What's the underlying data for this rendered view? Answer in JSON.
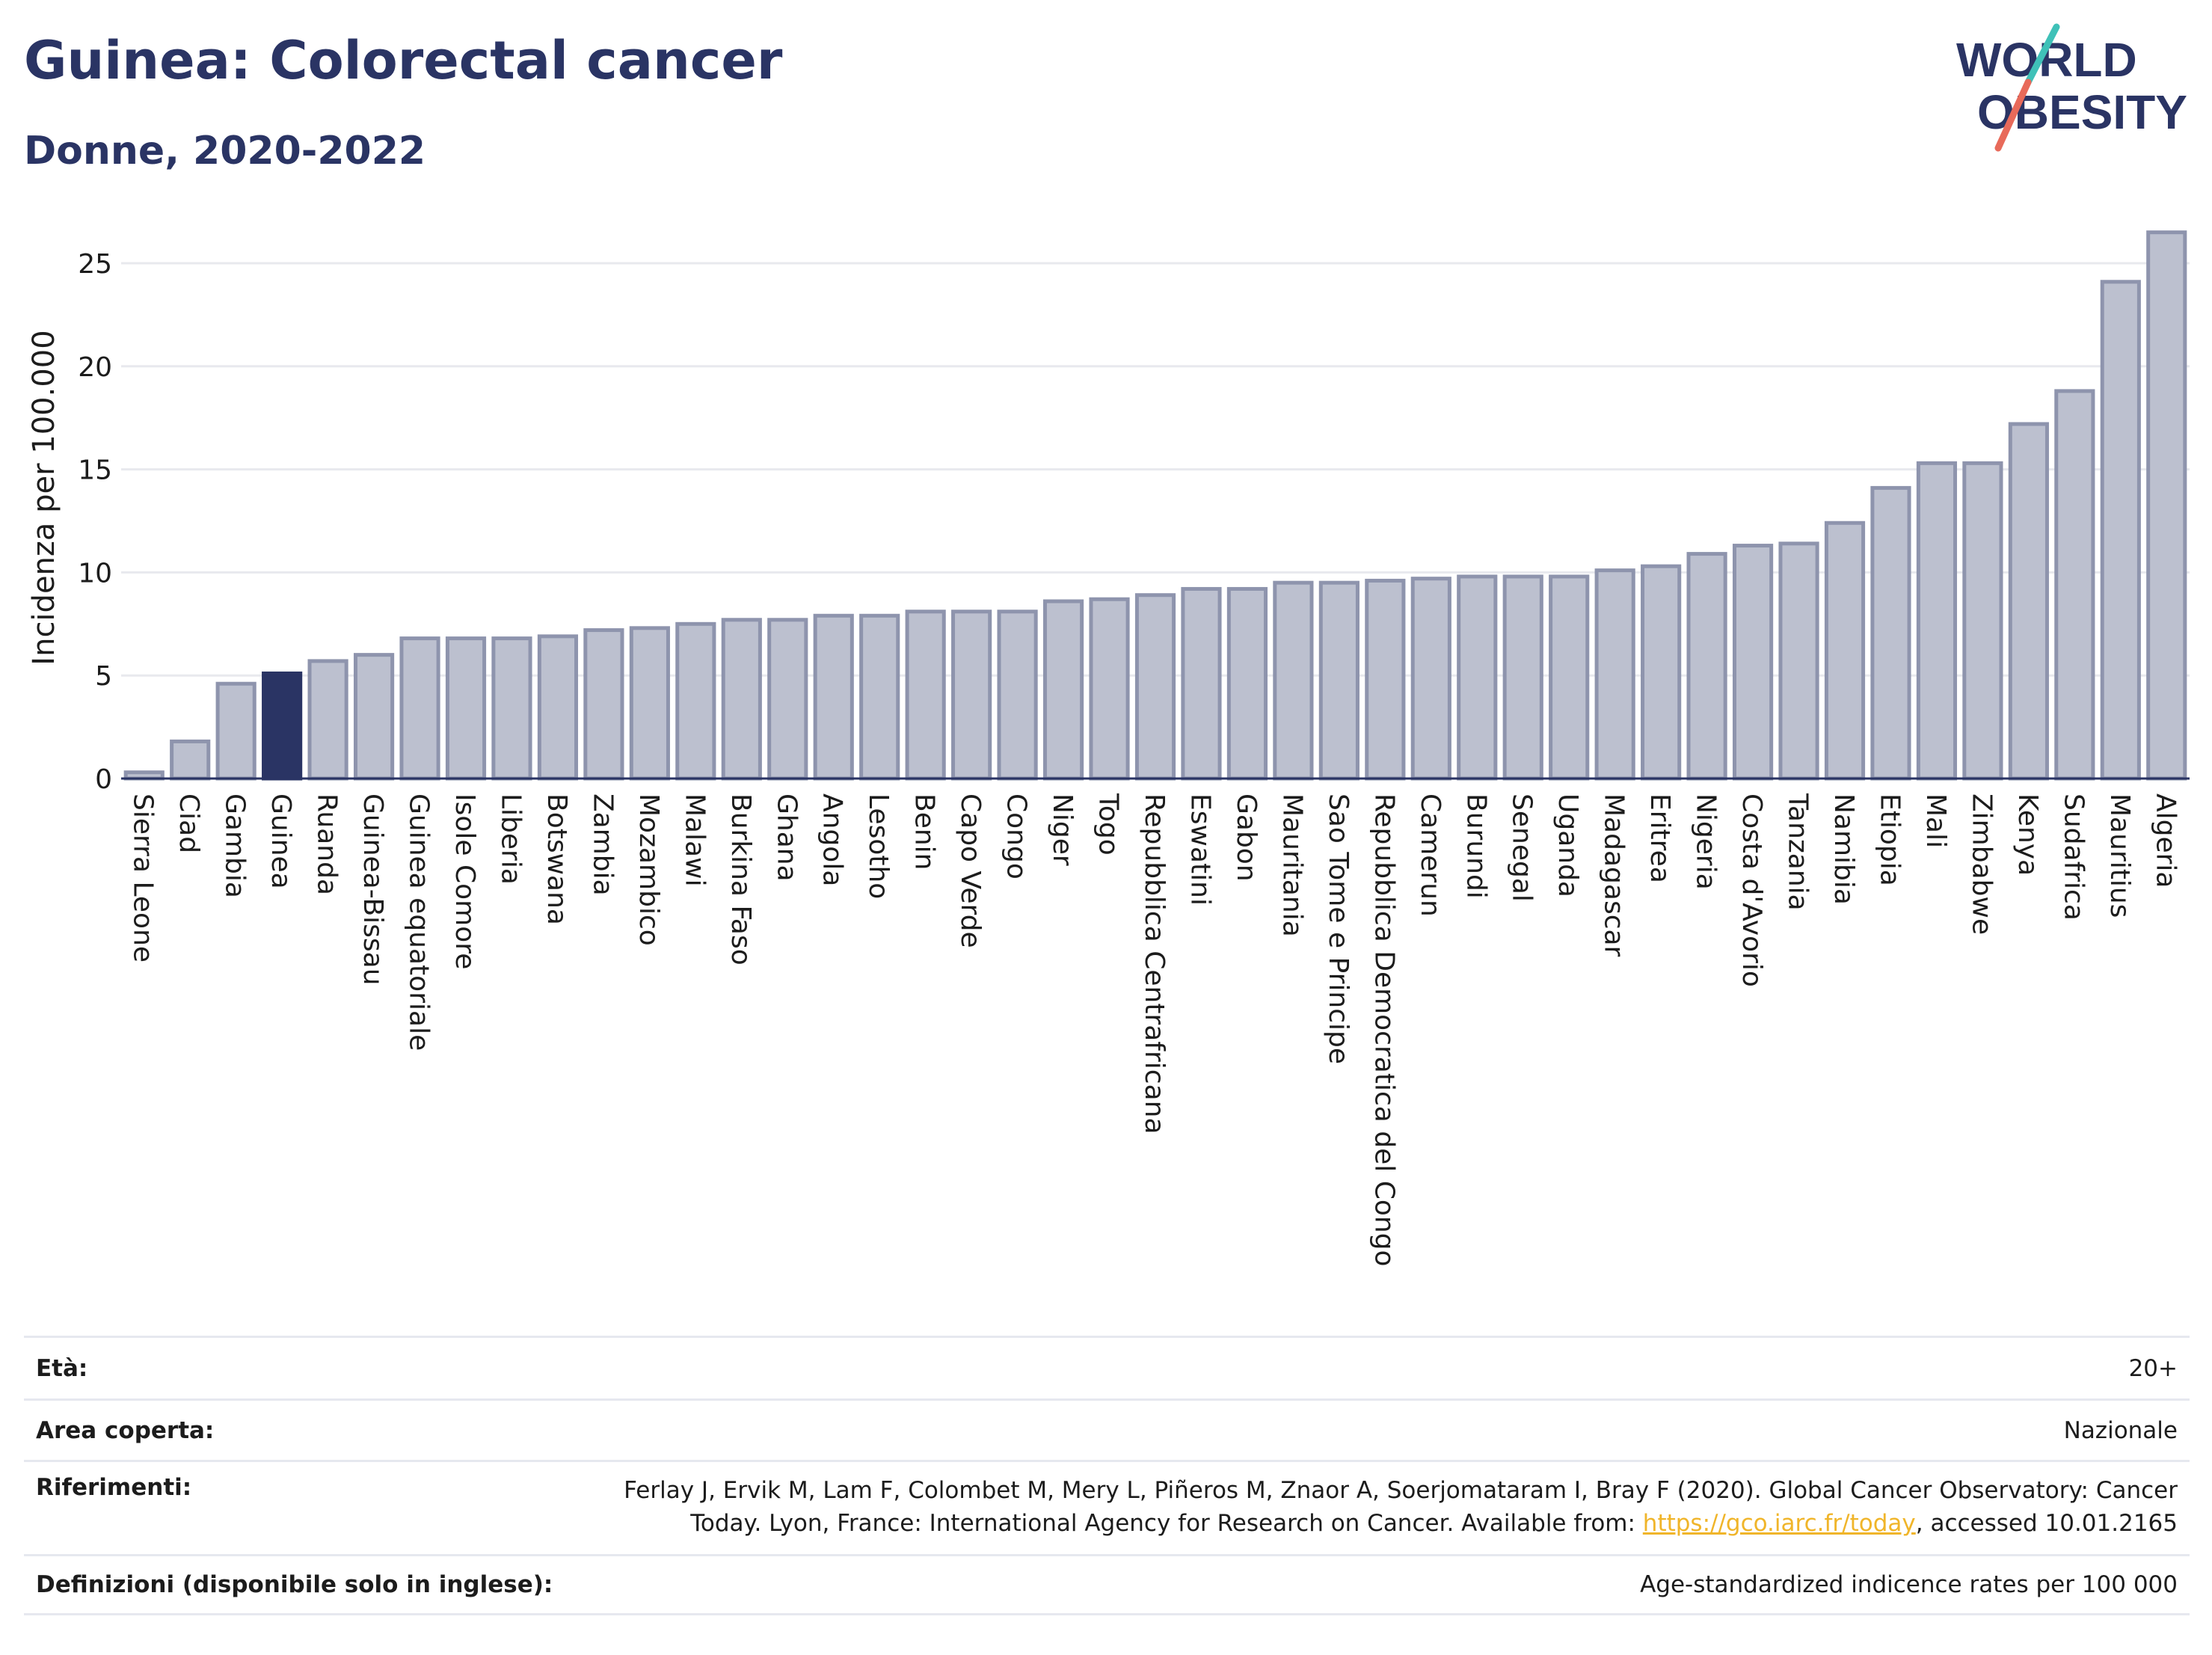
{
  "header": {
    "title": "Guinea: Colorectal cancer",
    "subtitle": "Donne, 2020-2022"
  },
  "logo": {
    "line1": "WORLD",
    "line2": "OBESITY"
  },
  "colors": {
    "bar": "#bcc0cf",
    "bar_border": "#8e94ad",
    "highlight": "#2a3464",
    "grid": "#e8e9ee",
    "text": "#2a3464",
    "link": "#f0b52a",
    "logo_slash_top": "#3fc1b8",
    "logo_slash_bottom": "#e86a5a"
  },
  "chart_data": {
    "type": "bar",
    "ylabel": "Incidenza per 100.000",
    "xlabel": "",
    "ylim": [
      0,
      27
    ],
    "yticks": [
      0,
      5,
      10,
      15,
      20,
      25
    ],
    "grid": true,
    "highlight": "Guinea",
    "categories": [
      "Sierra Leone",
      "Ciad",
      "Gambia",
      "Guinea",
      "Ruanda",
      "Guinea-Bissau",
      "Guinea equatoriale",
      "Isole Comore",
      "Liberia",
      "Botswana",
      "Zambia",
      "Mozambico",
      "Malawi",
      "Burkina Faso",
      "Ghana",
      "Angola",
      "Lesotho",
      "Benin",
      "Capo Verde",
      "Congo",
      "Niger",
      "Togo",
      "Repubblica Centrafricana",
      "Eswatini",
      "Gabon",
      "Mauritania",
      "Sao Tome e Principe",
      "Repubblica Democratica del Congo",
      "Camerun",
      "Burundi",
      "Senegal",
      "Uganda",
      "Madagascar",
      "Eritrea",
      "Nigeria",
      "Costa d'Avorio",
      "Tanzania",
      "Namibia",
      "Etiopia",
      "Mali",
      "Zimbabwe",
      "Kenya",
      "Sudafrica",
      "Mauritius",
      "Algeria"
    ],
    "values": [
      0.3,
      1.8,
      4.6,
      5.1,
      5.7,
      6.0,
      6.8,
      6.8,
      6.8,
      6.9,
      7.2,
      7.3,
      7.5,
      7.7,
      7.7,
      7.9,
      7.9,
      8.1,
      8.1,
      8.1,
      8.6,
      8.7,
      8.9,
      9.2,
      9.2,
      9.5,
      9.5,
      9.6,
      9.7,
      9.8,
      9.8,
      9.8,
      10.1,
      10.3,
      10.9,
      11.3,
      11.4,
      12.4,
      14.1,
      15.3,
      15.3,
      17.2,
      18.8,
      24.1,
      26.5
    ]
  },
  "meta": {
    "age_label": "Età:",
    "age_value": "20+",
    "area_label": "Area coperta:",
    "area_value": "Nazionale",
    "refs_label": "Riferimenti:",
    "refs_text_1": "Ferlay J, Ervik M, Lam F, Colombet M, Mery L, Piñeros M, Znaor A, Soerjomataram I, Bray F (2020). Global Cancer Observatory: Cancer",
    "refs_text_2": "Today. Lyon, France: International Agency for Research on Cancer. Available from: ",
    "refs_link": "https://gco.iarc.fr/today",
    "refs_text_3": ", accessed 10.01.2165",
    "defs_label": "Definizioni (disponibile solo in inglese):",
    "defs_value": "Age-standardized indicence rates per 100 000"
  }
}
